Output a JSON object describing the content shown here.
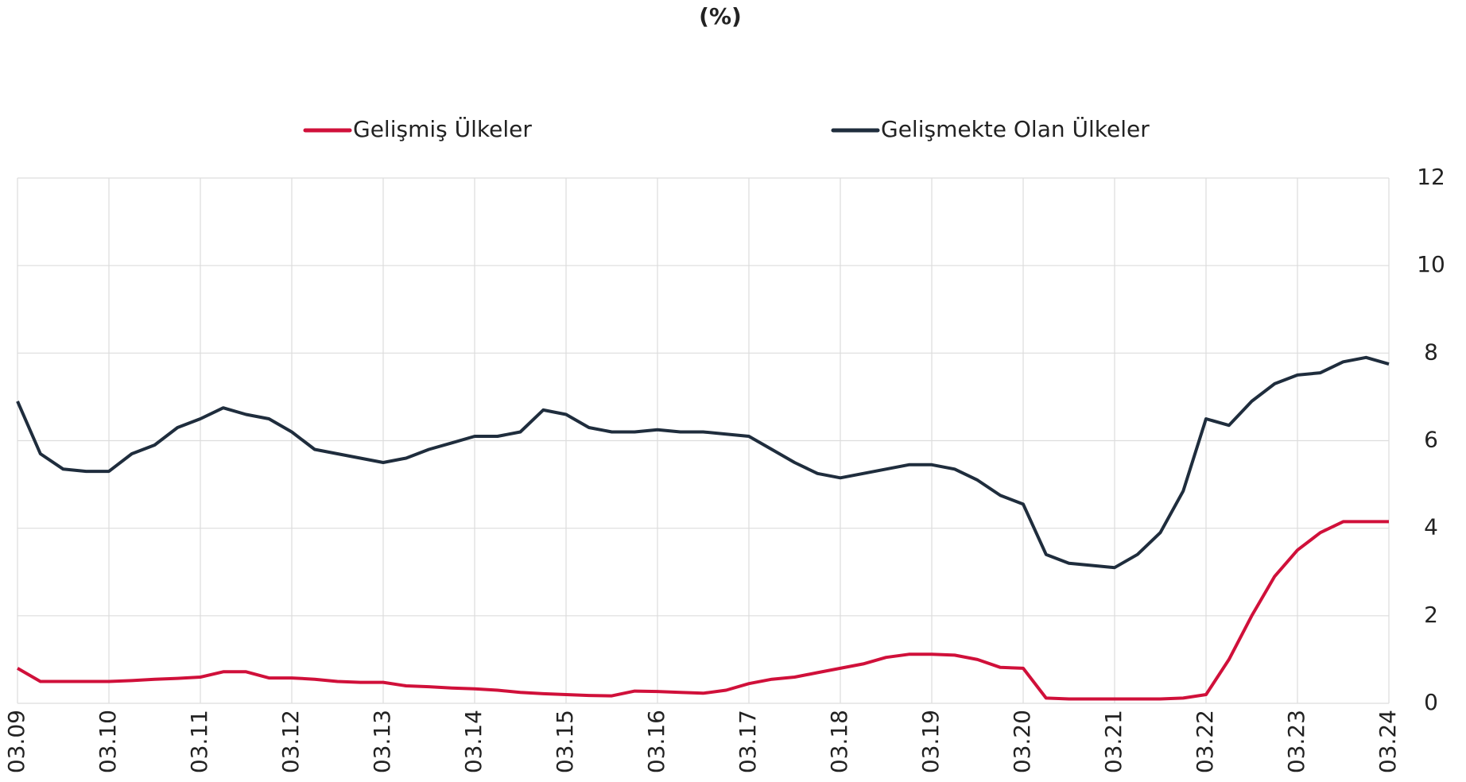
{
  "chart_data": {
    "type": "line",
    "title": "(%)",
    "categories": [
      "03.09",
      null,
      null,
      null,
      "03.10",
      null,
      null,
      null,
      "03.11",
      null,
      null,
      null,
      "03.12",
      null,
      null,
      null,
      "03.13",
      null,
      null,
      null,
      "03.14",
      null,
      null,
      null,
      "03.15",
      null,
      null,
      null,
      "03.16",
      null,
      null,
      null,
      "03.17",
      null,
      null,
      null,
      "03.18",
      null,
      null,
      null,
      "03.19",
      null,
      null,
      null,
      "03.20",
      null,
      null,
      null,
      "03.21",
      null,
      null,
      null,
      "03.22",
      null,
      null,
      null,
      "03.23",
      null,
      null,
      null,
      "03.24"
    ],
    "series": [
      {
        "name": "Gelişmiş Ülkeler",
        "color": "#d0103a",
        "values": [
          0.8,
          0.5,
          0.5,
          0.5,
          0.5,
          0.52,
          0.55,
          0.57,
          0.6,
          0.72,
          0.72,
          0.58,
          0.58,
          0.55,
          0.5,
          0.48,
          0.48,
          0.4,
          0.38,
          0.35,
          0.33,
          0.3,
          0.25,
          0.22,
          0.2,
          0.18,
          0.17,
          0.28,
          0.27,
          0.25,
          0.23,
          0.3,
          0.45,
          0.55,
          0.6,
          0.7,
          0.8,
          0.9,
          1.05,
          1.12,
          1.12,
          1.1,
          1.0,
          0.82,
          0.8,
          0.12,
          0.1,
          0.1,
          0.1,
          0.1,
          0.1,
          0.12,
          0.2,
          1.0,
          2.0,
          2.9,
          3.5,
          3.9,
          4.15,
          4.15,
          4.15
        ]
      },
      {
        "name": "Gelişmekte Olan Ülkeler",
        "color": "#1f2d3d",
        "values": [
          6.9,
          5.7,
          5.35,
          5.3,
          5.3,
          5.7,
          5.9,
          6.3,
          6.5,
          6.75,
          6.6,
          6.5,
          6.2,
          5.8,
          5.7,
          5.6,
          5.5,
          5.6,
          5.8,
          5.95,
          6.1,
          6.1,
          6.2,
          6.7,
          6.6,
          6.3,
          6.2,
          6.2,
          6.25,
          6.2,
          6.2,
          6.15,
          6.1,
          5.8,
          5.5,
          5.25,
          5.15,
          5.25,
          5.35,
          5.45,
          5.45,
          5.35,
          5.1,
          4.75,
          4.55,
          3.4,
          3.2,
          3.15,
          3.1,
          3.4,
          3.9,
          4.85,
          6.5,
          6.35,
          6.9,
          7.3,
          7.5,
          7.55,
          7.8,
          7.9,
          7.75
        ]
      }
    ],
    "ylim": [
      0,
      12
    ],
    "yticks": [
      0,
      2,
      4,
      6,
      8,
      10,
      12
    ],
    "grid": true
  }
}
